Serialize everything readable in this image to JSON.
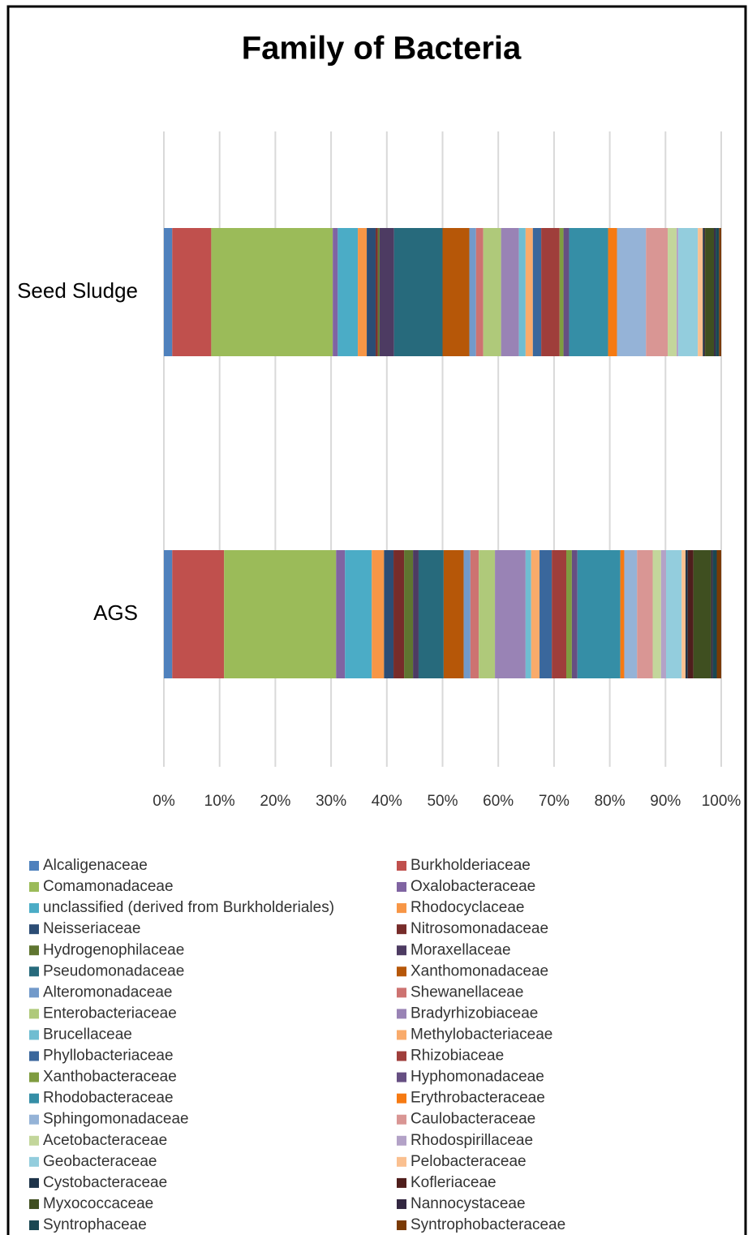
{
  "chart_data": {
    "type": "stacked_bar_horizontal",
    "title": "Family of Bacteria",
    "categories": [
      "Seed Sludge",
      "AGS"
    ],
    "xlim": [
      0,
      100
    ],
    "xticks": [
      {
        "value": 0,
        "label": "0%"
      },
      {
        "value": 10,
        "label": "10%"
      },
      {
        "value": 20,
        "label": "20%"
      },
      {
        "value": 30,
        "label": "30%"
      },
      {
        "value": 40,
        "label": "40%"
      },
      {
        "value": 50,
        "label": "50%"
      },
      {
        "value": 60,
        "label": "60%"
      },
      {
        "value": 70,
        "label": "70%"
      },
      {
        "value": 80,
        "label": "80%"
      },
      {
        "value": 90,
        "label": "90%"
      },
      {
        "value": 100,
        "label": "100%"
      }
    ],
    "grid": true,
    "legend": "bottom",
    "series": [
      {
        "name": "Alcaligenaceae",
        "color": "#4f81bd",
        "values": [
          1.5,
          1.5
        ]
      },
      {
        "name": "Burkholderiaceae",
        "color": "#c0504d",
        "values": [
          7,
          9.3
        ]
      },
      {
        "name": "Comamonadaceae",
        "color": "#9bbb59",
        "values": [
          21.8,
          20.1
        ]
      },
      {
        "name": "Oxalobacteraceae",
        "color": "#8064a2",
        "values": [
          0.9,
          1.6
        ]
      },
      {
        "name": "unclassified (derived from Burkholderiales)",
        "color": "#4bacc6",
        "values": [
          3.6,
          4.8
        ]
      },
      {
        "name": "Rhodocyclaceae",
        "color": "#f79646",
        "values": [
          1.6,
          2.2
        ]
      },
      {
        "name": "Neisseriaceae",
        "color": "#2c4d75",
        "values": [
          1.6,
          1.7
        ]
      },
      {
        "name": "Nitrosomonadaceae",
        "color": "#772c2a",
        "values": [
          0.4,
          1.9
        ]
      },
      {
        "name": "Hydrogenophilaceae",
        "color": "#5f7530",
        "values": [
          0.3,
          1.6
        ]
      },
      {
        "name": "Moraxellaceae",
        "color": "#4d3b62",
        "values": [
          2.6,
          1.0
        ]
      },
      {
        "name": "Pseudomonadaceae",
        "color": "#276a7c",
        "values": [
          8.7,
          4.5
        ]
      },
      {
        "name": "Xanthomonadaceae",
        "color": "#b65708",
        "values": [
          4.8,
          3.6
        ]
      },
      {
        "name": "Alteromonadaceae",
        "color": "#729aca",
        "values": [
          1.2,
          1.2
        ]
      },
      {
        "name": "Shewanellaceae",
        "color": "#cd7371",
        "values": [
          1.3,
          1.5
        ]
      },
      {
        "name": "Enterobacteriaceae",
        "color": "#afc97a",
        "values": [
          3.2,
          2.9
        ]
      },
      {
        "name": "Bradyrhizobiaceae",
        "color": "#9983b5",
        "values": [
          3.2,
          5.5
        ]
      },
      {
        "name": "Brucellaceae",
        "color": "#6fbdd1",
        "values": [
          1.2,
          1.0
        ]
      },
      {
        "name": "Methylobacteriaceae",
        "color": "#f9ab6b",
        "values": [
          1.3,
          1.5
        ]
      },
      {
        "name": "Phyllobacteriaceae",
        "color": "#3a679c",
        "values": [
          1.5,
          2.2
        ]
      },
      {
        "name": "Rhizobiaceae",
        "color": "#9f3e3b",
        "values": [
          3.3,
          2.6
        ]
      },
      {
        "name": "Xanthobacteraceae",
        "color": "#7f9c40",
        "values": [
          0.7,
          1.0
        ]
      },
      {
        "name": "Hyphomonadaceae",
        "color": "#664f82",
        "values": [
          1.0,
          1.0
        ]
      },
      {
        "name": "Rhodobacteraceae",
        "color": "#358ea6",
        "values": [
          7,
          7.7
        ]
      },
      {
        "name": "Erythrobacteraceae",
        "color": "#f67a12",
        "values": [
          1.6,
          0.7
        ]
      },
      {
        "name": "Sphingomonadaceae",
        "color": "#95b3d7",
        "values": [
          5.2,
          2.3
        ]
      },
      {
        "name": "Caulobacteraceae",
        "color": "#d99694",
        "values": [
          3.9,
          2.8
        ]
      },
      {
        "name": "Acetobacteraceae",
        "color": "#c3d69b",
        "values": [
          1.6,
          1.5
        ]
      },
      {
        "name": "Rhodospirillaceae",
        "color": "#b3a2c7",
        "values": [
          0.3,
          0.9
        ]
      },
      {
        "name": "Geobacteraceae",
        "color": "#93cddd",
        "values": [
          3.5,
          2.8
        ]
      },
      {
        "name": "Pelobacteraceae",
        "color": "#fac090",
        "values": [
          0.9,
          0.7
        ]
      },
      {
        "name": "Cystobacteraceae",
        "color": "#1d3349",
        "values": [
          0.3,
          0.4
        ]
      },
      {
        "name": "Kofleriaceae",
        "color": "#4f1e1c",
        "values": [
          0.1,
          1.0
        ]
      },
      {
        "name": "Myxococcaceae",
        "color": "#3f4f20",
        "values": [
          1.6,
          3.2
        ]
      },
      {
        "name": "Nannocystaceae",
        "color": "#332741",
        "values": [
          0.3,
          0.3
        ]
      },
      {
        "name": "Syntrophaceae",
        "color": "#1a4752",
        "values": [
          0.6,
          0.7
        ]
      },
      {
        "name": "Syntrophobacteraceae",
        "color": "#7a3a05",
        "values": [
          0.4,
          0.8
        ]
      }
    ]
  }
}
